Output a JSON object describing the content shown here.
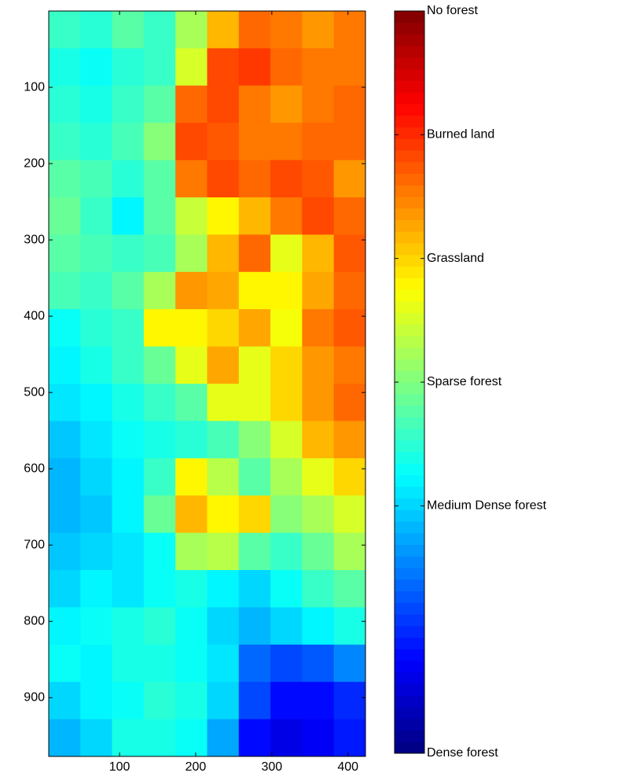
{
  "chart_data": {
    "type": "heatmap",
    "xlim": [
      7,
      423
    ],
    "ylim": [
      0,
      977
    ],
    "y_reversed": true,
    "xticks": [
      100,
      200,
      300,
      400
    ],
    "yticks": [
      100,
      200,
      300,
      400,
      500,
      600,
      700,
      800,
      900
    ],
    "colormap": "jet",
    "clim": [
      1,
      7
    ],
    "colorbar_ticks": [
      {
        "value": 1,
        "label": "Dense forest"
      },
      {
        "value": 3,
        "label": "Medium Dense forest"
      },
      {
        "value": 4,
        "label": "Sparse forest"
      },
      {
        "value": 5,
        "label": "Grassland"
      },
      {
        "value": 6,
        "label": "Burned land"
      },
      {
        "value": 7,
        "label": "No forest"
      }
    ],
    "z": [
      [
        3.6,
        3.5,
        3.8,
        3.6,
        4.2,
        5.2,
        5.6,
        5.5,
        5.4,
        5.5
      ],
      [
        3.4,
        3.3,
        3.5,
        3.6,
        4.5,
        5.8,
        5.9,
        5.6,
        5.5,
        5.5
      ],
      [
        3.5,
        3.4,
        3.6,
        3.8,
        5.6,
        5.8,
        5.5,
        5.4,
        5.5,
        5.6
      ],
      [
        3.6,
        3.5,
        3.7,
        4.0,
        5.8,
        5.7,
        5.5,
        5.5,
        5.6,
        5.6
      ],
      [
        3.8,
        3.7,
        3.5,
        3.8,
        5.5,
        5.8,
        5.6,
        5.8,
        5.7,
        5.4
      ],
      [
        3.9,
        3.6,
        3.2,
        3.8,
        4.4,
        4.8,
        5.2,
        5.5,
        5.8,
        5.6
      ],
      [
        3.8,
        3.7,
        3.6,
        3.7,
        4.2,
        5.2,
        5.6,
        4.6,
        5.2,
        5.7
      ],
      [
        3.7,
        3.6,
        3.8,
        4.2,
        5.4,
        5.3,
        4.8,
        4.8,
        5.3,
        5.6
      ],
      [
        3.3,
        3.5,
        3.6,
        4.8,
        4.8,
        5.0,
        5.3,
        4.7,
        5.5,
        5.7
      ],
      [
        3.2,
        3.4,
        3.6,
        3.9,
        4.6,
        5.3,
        4.6,
        5.0,
        5.4,
        5.5
      ],
      [
        3.1,
        3.2,
        3.4,
        3.6,
        3.8,
        4.6,
        4.6,
        5.0,
        5.4,
        5.6
      ],
      [
        2.9,
        3.1,
        3.3,
        3.4,
        3.5,
        3.7,
        4.0,
        4.5,
        5.2,
        5.4
      ],
      [
        2.8,
        3.0,
        3.2,
        3.6,
        4.8,
        4.3,
        3.8,
        4.2,
        4.6,
        5.0
      ],
      [
        2.8,
        2.9,
        3.2,
        3.9,
        5.2,
        4.8,
        5.0,
        4.0,
        4.2,
        4.5
      ],
      [
        2.9,
        3.0,
        3.1,
        3.3,
        4.2,
        4.3,
        3.8,
        3.6,
        3.9,
        4.2
      ],
      [
        3.0,
        3.2,
        3.1,
        3.3,
        3.4,
        3.2,
        3.0,
        3.3,
        3.6,
        3.8
      ],
      [
        3.2,
        3.3,
        3.4,
        3.5,
        3.3,
        3.0,
        2.8,
        3.0,
        3.2,
        3.4
      ],
      [
        3.3,
        3.2,
        3.4,
        3.4,
        3.3,
        3.1,
        2.4,
        2.2,
        2.3,
        2.5
      ],
      [
        3.0,
        3.2,
        3.3,
        3.5,
        3.4,
        3.0,
        2.2,
        1.8,
        1.8,
        2.0
      ],
      [
        2.8,
        3.0,
        3.4,
        3.4,
        3.3,
        2.7,
        1.8,
        1.6,
        1.7,
        1.9
      ]
    ]
  }
}
